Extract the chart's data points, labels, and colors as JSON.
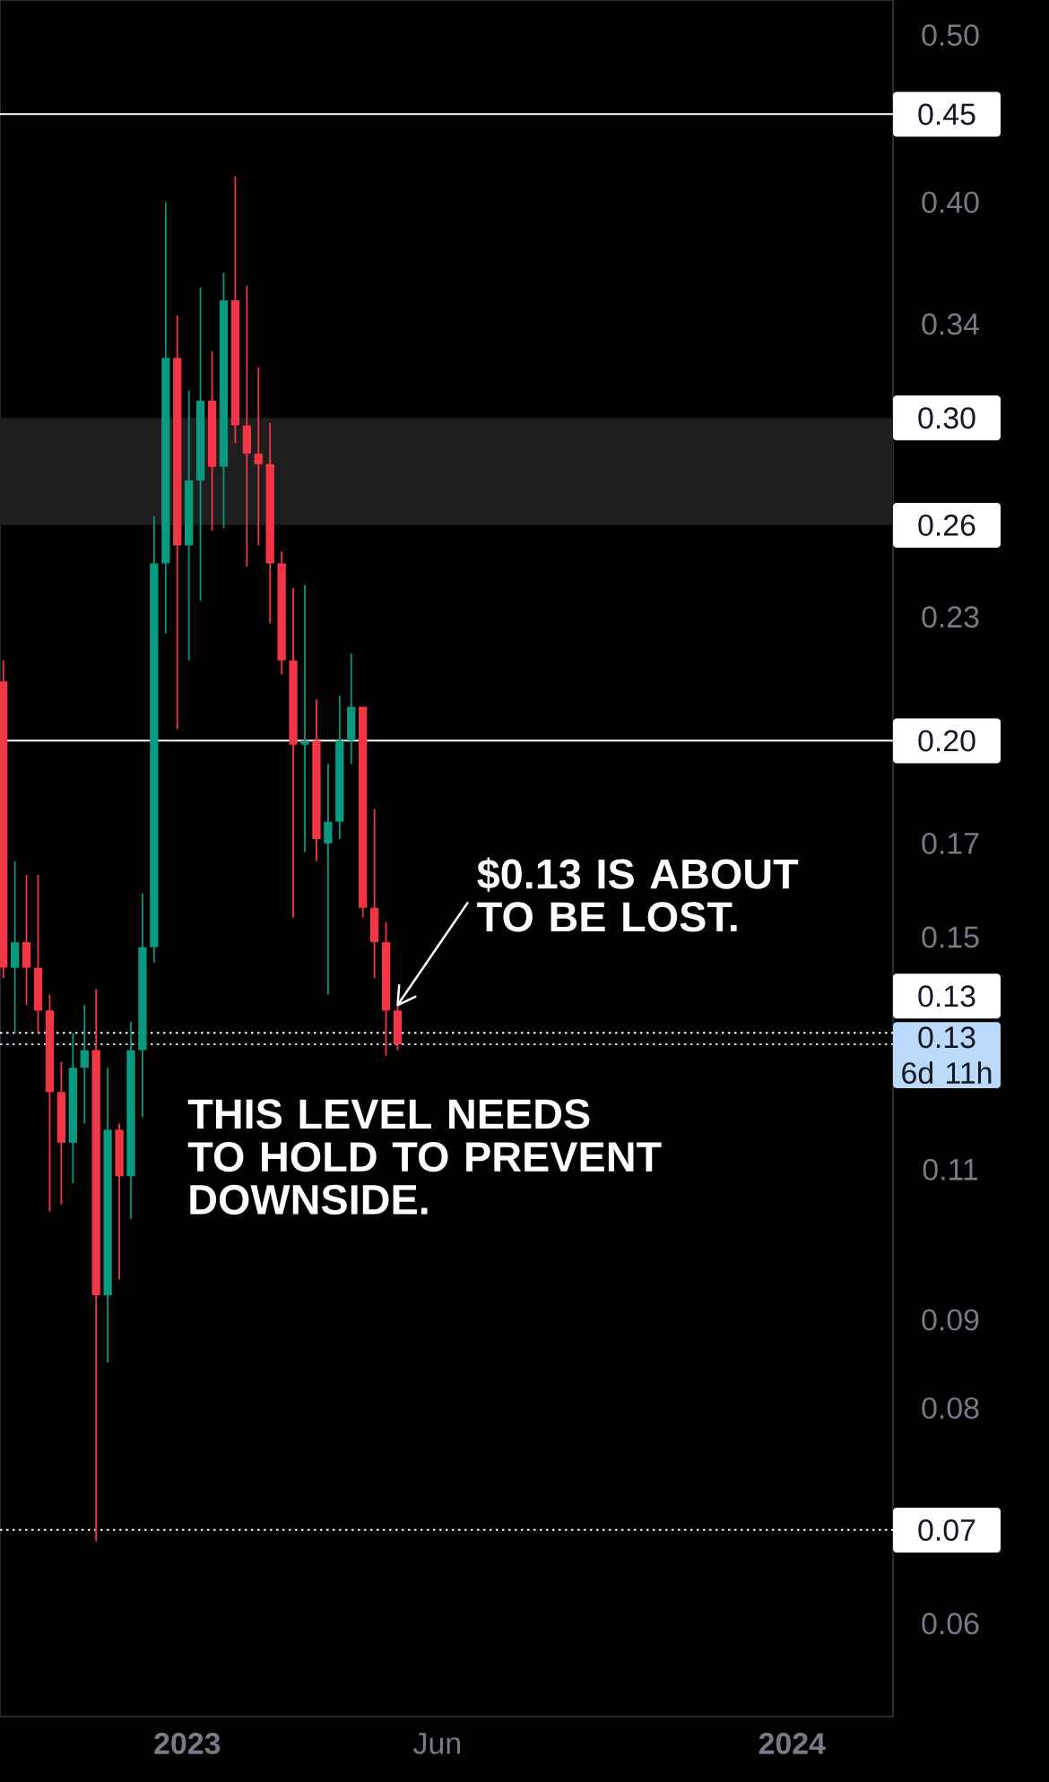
{
  "chart_data": {
    "type": "candlestick",
    "log": true,
    "x": [
      "2022-09-12",
      "2022-09-19",
      "2022-09-26",
      "2022-10-03",
      "2022-10-10",
      "2022-10-17",
      "2022-10-24",
      "2022-10-31",
      "2022-11-07",
      "2022-11-14",
      "2022-11-21",
      "2022-11-28",
      "2022-12-05",
      "2022-12-12",
      "2022-12-19",
      "2022-12-26",
      "2023-01-02",
      "2023-01-09",
      "2023-01-16",
      "2023-01-23",
      "2023-01-30",
      "2023-02-06",
      "2023-02-13",
      "2023-02-20",
      "2023-02-27",
      "2023-03-06",
      "2023-03-13",
      "2023-03-20",
      "2023-03-27",
      "2023-04-03",
      "2023-04-10",
      "2023-04-17",
      "2023-04-24",
      "2023-05-01",
      "2023-05-08"
    ],
    "ohlc": [
      [
        0.211,
        0.217,
        0.142,
        0.144
      ],
      [
        0.144,
        0.166,
        0.132,
        0.149
      ],
      [
        0.149,
        0.163,
        0.137,
        0.144
      ],
      [
        0.144,
        0.163,
        0.132,
        0.136
      ],
      [
        0.136,
        0.139,
        0.104,
        0.122
      ],
      [
        0.122,
        0.127,
        0.105,
        0.114
      ],
      [
        0.114,
        0.132,
        0.108,
        0.126
      ],
      [
        0.126,
        0.137,
        0.117,
        0.129
      ],
      [
        0.129,
        0.14,
        0.067,
        0.093
      ],
      [
        0.093,
        0.126,
        0.085,
        0.116
      ],
      [
        0.116,
        0.117,
        0.095,
        0.109
      ],
      [
        0.109,
        0.134,
        0.103,
        0.129
      ],
      [
        0.129,
        0.159,
        0.118,
        0.148
      ],
      [
        0.148,
        0.263,
        0.145,
        0.247
      ],
      [
        0.247,
        0.4,
        0.225,
        0.325
      ],
      [
        0.325,
        0.344,
        0.198,
        0.253
      ],
      [
        0.253,
        0.311,
        0.217,
        0.276
      ],
      [
        0.276,
        0.357,
        0.235,
        0.307
      ],
      [
        0.307,
        0.328,
        0.258,
        0.281
      ],
      [
        0.281,
        0.364,
        0.259,
        0.351
      ],
      [
        0.351,
        0.414,
        0.29,
        0.297
      ],
      [
        0.297,
        0.358,
        0.246,
        0.286
      ],
      [
        0.286,
        0.321,
        0.253,
        0.282
      ],
      [
        0.282,
        0.298,
        0.228,
        0.247
      ],
      [
        0.247,
        0.251,
        0.213,
        0.217
      ],
      [
        0.217,
        0.239,
        0.154,
        0.194
      ],
      [
        0.194,
        0.24,
        0.168,
        0.195
      ],
      [
        0.195,
        0.206,
        0.166,
        0.171
      ],
      [
        0.17,
        0.189,
        0.139,
        0.175
      ],
      [
        0.175,
        0.207,
        0.171,
        0.195
      ],
      [
        0.195,
        0.219,
        0.189,
        0.204
      ],
      [
        0.204,
        0.204,
        0.154,
        0.156
      ],
      [
        0.156,
        0.178,
        0.142,
        0.149
      ],
      [
        0.149,
        0.153,
        0.128,
        0.136
      ],
      [
        0.136,
        0.137,
        0.129,
        0.13
      ]
    ],
    "colors": [
      "#f23645",
      "#089981",
      "#f23645",
      "#f23645",
      "#f23645",
      "#f23645",
      "#089981",
      "#089981",
      "#f23645",
      "#089981",
      "#f23645",
      "#089981",
      "#089981",
      "#089981",
      "#089981",
      "#f23645",
      "#089981",
      "#089981",
      "#f23645",
      "#089981",
      "#f23645",
      "#f23645",
      "#f23645",
      "#f23645",
      "#f23645",
      "#f23645",
      "#089981",
      "#f23645",
      "#089981",
      "#089981",
      "#089981",
      "#f23645",
      "#f23645",
      "#f23645",
      "#f23645"
    ],
    "xlim": [
      "2022-09-10",
      "2024-03-02"
    ],
    "xticks": [
      "2023",
      {
        "value": "2023-06-01",
        "label": "Jun"
      },
      "2024"
    ],
    "ylim": [
      0.053,
      0.524
    ],
    "yticks": [
      {
        "value": 0.5,
        "label": "0.50"
      },
      {
        "value": 0.4,
        "label": "0.40"
      },
      0.34,
      0.23,
      0.17,
      0.15,
      0.11,
      0.09,
      0.08,
      0.06
    ],
    "bands": [
      {
        "axis": "y",
        "from": 0.26,
        "to": 0.3,
        "color": "#1e1e1e"
      }
    ],
    "ref_lines": [
      {
        "axis": "y",
        "value": 0.45,
        "label": "0.45",
        "color": "#ffffff",
        "line_style": "solid"
      },
      {
        "axis": "y",
        "value": 0.195,
        "label": "0.20",
        "color": "#ffffff",
        "line_style": "solid"
      },
      {
        "axis": "y",
        "value": 0.132,
        "label": "0.13",
        "color": "#ffffff",
        "line_style": "dotted"
      },
      {
        "axis": "y",
        "value": 0.13,
        "label": "0.13 6d 11h",
        "color": "#bbd9fb",
        "line_style": "dotted"
      },
      {
        "axis": "y",
        "value": 0.068,
        "label": "0.07",
        "color": "#ffffff",
        "line_style": "dotted"
      }
    ],
    "annotations": [
      {
        "text": "$0.13 IS ABOUT TO BE LOST.",
        "x": "2023-05-08",
        "y": 0.137
      },
      "THIS LEVEL NEEDS TO HOLD TO PREVENT DOWNSIDE.",
      {
        "text": "0.30",
        "x": "2024-03-02",
        "y": 0.3
      },
      {
        "text": "0.26",
        "x": "2024-03-02",
        "y": 0.26
      }
    ]
  }
}
